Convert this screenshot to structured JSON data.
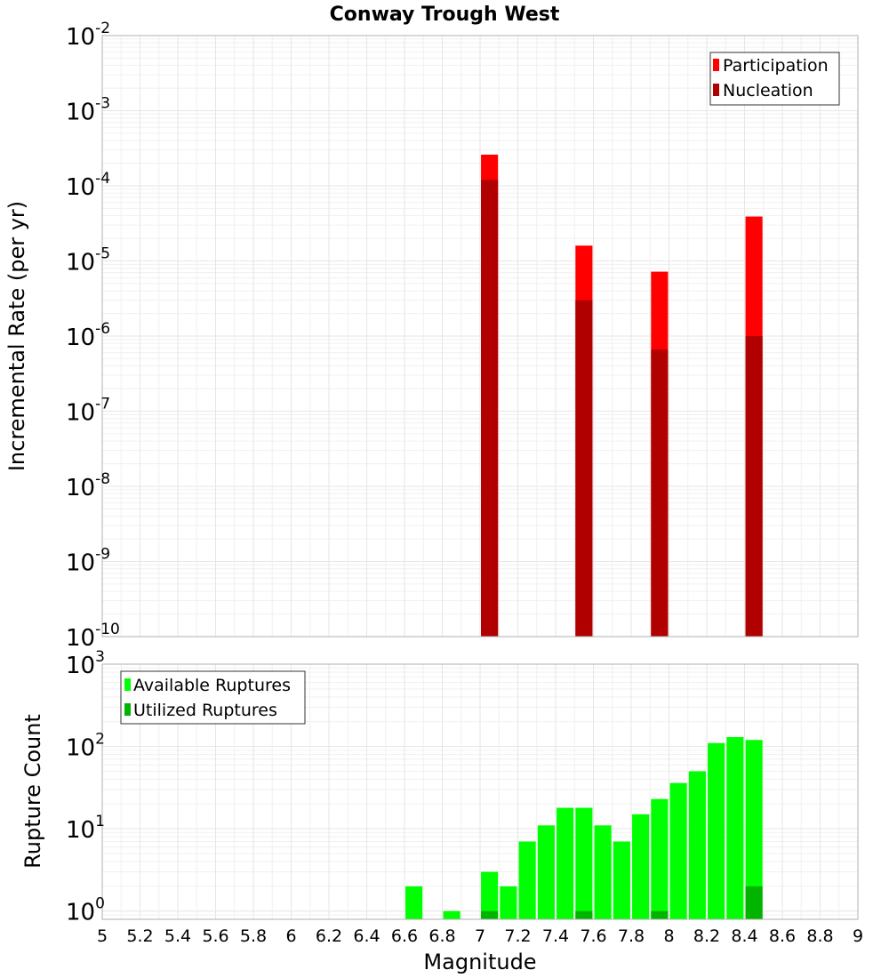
{
  "chart_data": [
    {
      "type": "bar",
      "title": "Conway Trough West",
      "xlabel": "",
      "ylabel": "Incremental Rate (per yr)",
      "yscale": "log",
      "ylim_exp": [
        -10,
        -2
      ],
      "xlim": [
        5,
        9
      ],
      "legend_position": "top-right",
      "bar_width": 0.09,
      "ytick_labels": [
        {
          "base": "10",
          "exp": "-2"
        },
        {
          "base": "10",
          "exp": "-3"
        },
        {
          "base": "10",
          "exp": "-4"
        },
        {
          "base": "10",
          "exp": "-5"
        },
        {
          "base": "10",
          "exp": "-6"
        },
        {
          "base": "10",
          "exp": "-7"
        },
        {
          "base": "10",
          "exp": "-8"
        },
        {
          "base": "10",
          "exp": "-9"
        },
        {
          "base": "10",
          "exp": "-10"
        }
      ],
      "series": [
        {
          "name": "Participation",
          "color": "#ff0000",
          "points": [
            [
              7.05,
              0.00026
            ],
            [
              7.55,
              1.6e-05
            ],
            [
              7.95,
              7.2e-06
            ],
            [
              8.45,
              3.9e-05
            ]
          ]
        },
        {
          "name": "Nucleation",
          "color": "#b00000",
          "points": [
            [
              7.05,
              0.00012
            ],
            [
              7.55,
              3e-06
            ],
            [
              7.95,
              6.6e-07
            ],
            [
              8.45,
              1e-06
            ]
          ]
        }
      ]
    },
    {
      "type": "bar",
      "title": "",
      "xlabel": "Magnitude",
      "ylabel": "Rupture Count",
      "yscale": "log",
      "ylim_exp": [
        -0.1,
        3
      ],
      "xlim": [
        5,
        9
      ],
      "legend_position": "top-left",
      "bar_width": 0.09,
      "xtick_labels": [
        "5",
        "5.2",
        "5.4",
        "5.6",
        "5.8",
        "6",
        "6.2",
        "6.4",
        "6.6",
        "6.8",
        "7",
        "7.2",
        "7.4",
        "7.6",
        "7.8",
        "8",
        "8.2",
        "8.4",
        "8.6",
        "8.8",
        "9"
      ],
      "ytick_labels": [
        {
          "base": "10",
          "exp": "3"
        },
        {
          "base": "10",
          "exp": "2"
        },
        {
          "base": "10",
          "exp": "1"
        },
        {
          "base": "10",
          "exp": "0"
        }
      ],
      "series": [
        {
          "name": "Available Ruptures",
          "color": "#00ff00",
          "points": [
            [
              6.65,
              2
            ],
            [
              6.85,
              1
            ],
            [
              7.05,
              3
            ],
            [
              7.15,
              2
            ],
            [
              7.25,
              7
            ],
            [
              7.35,
              11
            ],
            [
              7.45,
              18
            ],
            [
              7.55,
              18
            ],
            [
              7.65,
              11
            ],
            [
              7.75,
              7
            ],
            [
              7.85,
              15
            ],
            [
              7.95,
              23
            ],
            [
              8.05,
              36
            ],
            [
              8.15,
              50
            ],
            [
              8.25,
              110
            ],
            [
              8.35,
              130
            ],
            [
              8.45,
              120
            ]
          ]
        },
        {
          "name": "Utilized Ruptures",
          "color": "#00b400",
          "points": [
            [
              7.05,
              1
            ],
            [
              7.55,
              1
            ],
            [
              7.95,
              1
            ],
            [
              8.45,
              2
            ]
          ]
        }
      ]
    }
  ]
}
